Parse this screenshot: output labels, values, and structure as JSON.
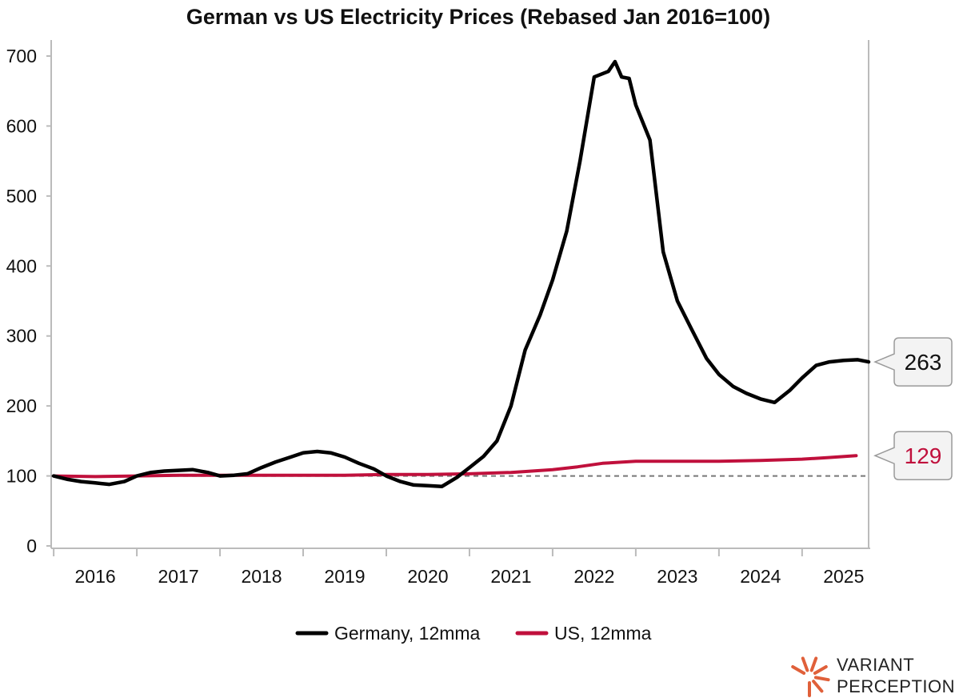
{
  "chart_data": {
    "type": "line",
    "title": "German vs US Electricity Prices (Rebased Jan 2016=100)",
    "xlabel": "",
    "ylabel": "",
    "ylim": [
      0,
      700
    ],
    "y_ticks": [
      0,
      100,
      200,
      300,
      400,
      500,
      600,
      700
    ],
    "x_range": [
      2015.97,
      2025.8
    ],
    "x_ticks": [
      {
        "x": 2016,
        "label": "2016"
      },
      {
        "x": 2017,
        "label": "2017"
      },
      {
        "x": 2018,
        "label": "2018"
      },
      {
        "x": 2019,
        "label": "2019"
      },
      {
        "x": 2020,
        "label": "2020"
      },
      {
        "x": 2021,
        "label": "2021"
      },
      {
        "x": 2022,
        "label": "2022"
      },
      {
        "x": 2023,
        "label": "2023"
      },
      {
        "x": 2024,
        "label": "2024"
      },
      {
        "x": 2025,
        "label": "2025"
      }
    ],
    "reference_line": {
      "y": 100,
      "style": "dashed"
    },
    "grid": false,
    "legend_position": "bottom-center",
    "series": [
      {
        "name": "Germany, 12mma",
        "color": "#000000",
        "last_value_label": "263",
        "x": [
          2016.0,
          2016.17,
          2016.33,
          2016.5,
          2016.67,
          2016.85,
          2017.0,
          2017.17,
          2017.33,
          2017.5,
          2017.67,
          2017.85,
          2018.0,
          2018.17,
          2018.33,
          2018.5,
          2018.67,
          2018.85,
          2019.0,
          2019.17,
          2019.33,
          2019.5,
          2019.67,
          2019.85,
          2020.0,
          2020.17,
          2020.33,
          2020.5,
          2020.67,
          2020.85,
          2021.0,
          2021.17,
          2021.33,
          2021.5,
          2021.67,
          2021.85,
          2022.0,
          2022.17,
          2022.33,
          2022.5,
          2022.67,
          2022.75,
          2022.83,
          2022.92,
          2023.0,
          2023.17,
          2023.33,
          2023.5,
          2023.67,
          2023.85,
          2024.0,
          2024.17,
          2024.33,
          2024.5,
          2024.67,
          2024.85,
          2025.0,
          2025.17,
          2025.33,
          2025.5,
          2025.67,
          2025.8
        ],
        "values": [
          100,
          95,
          92,
          90,
          88,
          92,
          100,
          105,
          107,
          108,
          109,
          105,
          100,
          101,
          103,
          112,
          120,
          127,
          133,
          135,
          133,
          127,
          118,
          110,
          100,
          92,
          87,
          86,
          85,
          98,
          112,
          128,
          150,
          200,
          280,
          330,
          380,
          450,
          550,
          670,
          678,
          692,
          670,
          668,
          630,
          580,
          420,
          350,
          310,
          268,
          245,
          228,
          218,
          210,
          205,
          222,
          240,
          258,
          263,
          265,
          266,
          263
        ]
      },
      {
        "name": "US, 12mma",
        "color": "#c0103c",
        "last_value_label": "129",
        "x": [
          2016.0,
          2016.5,
          2017.0,
          2017.5,
          2018.0,
          2018.5,
          2019.0,
          2019.5,
          2020.0,
          2020.5,
          2021.0,
          2021.5,
          2022.0,
          2022.3,
          2022.6,
          2023.0,
          2023.5,
          2024.0,
          2024.5,
          2025.0,
          2025.3,
          2025.65
        ],
        "values": [
          100,
          99,
          100,
          101,
          101,
          101,
          101,
          101,
          102,
          102,
          103,
          105,
          109,
          113,
          118,
          121,
          121,
          121,
          122,
          124,
          126,
          129
        ]
      }
    ]
  },
  "branding": {
    "name_line1": "VARIANT",
    "name_line2": "PERCEPTION",
    "logo_icon": "sunburst-logo-icon",
    "logo_color": "#e0603a"
  }
}
